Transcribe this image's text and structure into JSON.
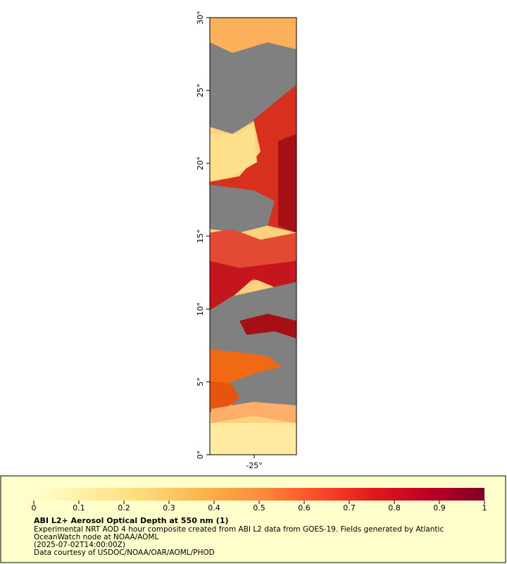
{
  "map": {
    "xlim": [
      -28.05,
      -22.1
    ],
    "ylim": [
      0,
      30
    ],
    "xticks": [
      {
        "value": -25,
        "label": "-25°"
      }
    ],
    "yticks": [
      {
        "value": 0,
        "label": "0°"
      },
      {
        "value": 5,
        "label": "5°"
      },
      {
        "value": 10,
        "label": "10°"
      },
      {
        "value": 15,
        "label": "15°"
      },
      {
        "value": 20,
        "label": "20°"
      },
      {
        "value": 25,
        "label": "25°"
      },
      {
        "value": 30,
        "label": "30°"
      }
    ]
  },
  "colorbar": {
    "lim": [
      0,
      1
    ],
    "ticks": [
      0,
      0.1,
      0.2,
      0.3,
      0.4,
      0.5,
      0.6,
      0.7,
      0.8,
      0.9,
      1
    ],
    "colors": [
      "#ffffcc",
      "#ffeda0",
      "#fed976",
      "#feb24c",
      "#fd8d3c",
      "#fc4e2a",
      "#e31a1c",
      "#bd0026",
      "#800026"
    ]
  },
  "legend": {
    "title": "ABI L2+ Aerosol Optical Depth at 550 nm (1)",
    "lines": [
      "Experimental NRT AOD 4 hour composite created from ABI L2 data from GOES-19. Fields generated by Atlantic",
      "OceanWatch node at NOAA/AOML",
      "(2025-07-02T14:00:00Z)",
      "Data courtesy of USDOC/NOAA/OAR/AOML/PHOD"
    ]
  }
}
